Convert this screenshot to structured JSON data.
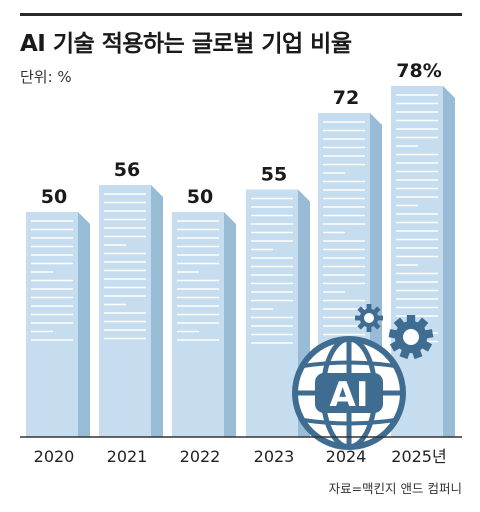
{
  "header": {
    "title": "AI 기술 적용하는 글로벌 기업 비율",
    "unit": "단위: %"
  },
  "chart_data": {
    "type": "bar",
    "title": "AI 기술 적용하는 글로벌 기업 비율",
    "unit": "%",
    "categories": [
      "2020",
      "2021",
      "2022",
      "2023",
      "2024",
      "2025년"
    ],
    "values": [
      50,
      56,
      50,
      55,
      72,
      78
    ],
    "value_labels": [
      "50",
      "56",
      "50",
      "55",
      "72",
      "78%"
    ],
    "ylim": [
      0,
      78
    ],
    "grid": false,
    "legend": "none"
  },
  "colors": {
    "bar_front": "#c6ddef",
    "bar_side": "#99bcd6",
    "bar_top": "#dcebf6",
    "bar_lines": "#ffffff",
    "illustration": "#3f6d92",
    "axis": "#333333"
  },
  "illustration": {
    "globe_text": "AI",
    "icons": [
      "globe-icon",
      "gear-icon",
      "small-gear-icon"
    ]
  },
  "footer": {
    "source": "자료=맥킨지 앤드 컴퍼니"
  }
}
